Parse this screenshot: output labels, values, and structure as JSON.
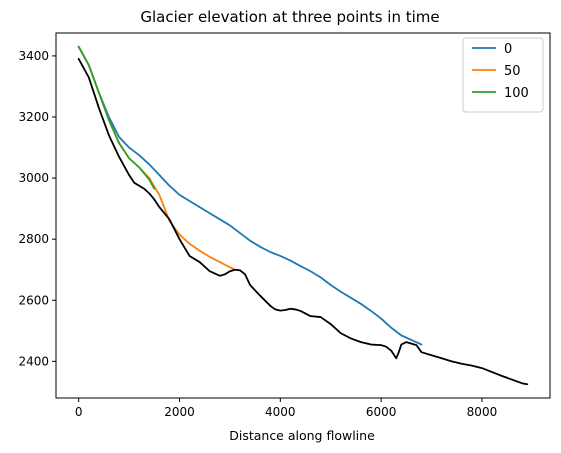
{
  "chart_data": {
    "type": "line",
    "title": "Glacier elevation at three points in time",
    "xlabel": "Distance along flowline",
    "ylabel": "",
    "xlim": [
      -450,
      9350
    ],
    "ylim": [
      2280,
      3475
    ],
    "xticks": [
      0,
      2000,
      4000,
      6000,
      8000
    ],
    "yticks": [
      2400,
      2600,
      2800,
      3000,
      3200,
      3400
    ],
    "grid": false,
    "legend": "top-right",
    "series": [
      {
        "name": "0",
        "color": "#1f77b4",
        "x": [
          0,
          200,
          400,
          600,
          800,
          1000,
          1200,
          1400,
          1600,
          1800,
          2000,
          2200,
          2400,
          2600,
          2800,
          3000,
          3200,
          3400,
          3600,
          3800,
          4000,
          4200,
          4400,
          4600,
          4800,
          5000,
          5200,
          5400,
          5600,
          5800,
          6000,
          6200,
          6400,
          6600,
          6800
        ],
        "y": [
          3430,
          3370,
          3280,
          3200,
          3135,
          3100,
          3075,
          3045,
          3010,
          2975,
          2945,
          2925,
          2905,
          2885,
          2865,
          2845,
          2820,
          2795,
          2775,
          2758,
          2745,
          2730,
          2712,
          2695,
          2675,
          2650,
          2628,
          2608,
          2588,
          2565,
          2540,
          2510,
          2485,
          2470,
          2455
        ]
      },
      {
        "name": "50",
        "color": "#ff7f0e",
        "x": [
          0,
          200,
          400,
          600,
          800,
          1000,
          1200,
          1400,
          1600,
          1800,
          2000,
          2200,
          2400,
          2600,
          2800,
          3000,
          3100
        ],
        "y": [
          3430,
          3370,
          3280,
          3190,
          3115,
          3065,
          3035,
          3000,
          2945,
          2860,
          2815,
          2785,
          2762,
          2742,
          2725,
          2708,
          2700
        ]
      },
      {
        "name": "100",
        "color": "#2ca02c",
        "x": [
          0,
          200,
          400,
          600,
          800,
          1000,
          1200,
          1400,
          1500
        ],
        "y": [
          3430,
          3370,
          3280,
          3190,
          3115,
          3065,
          3035,
          2995,
          2965
        ]
      },
      {
        "name": "",
        "color": "#000000",
        "x": [
          0,
          200,
          400,
          600,
          800,
          1000,
          1100,
          1200,
          1300,
          1400,
          1500,
          1600,
          1800,
          2000,
          2200,
          2400,
          2600,
          2800,
          2900,
          3000,
          3100,
          3200,
          3300,
          3400,
          3600,
          3800,
          3900,
          4000,
          4100,
          4200,
          4300,
          4400,
          4600,
          4800,
          5000,
          5200,
          5400,
          5600,
          5800,
          6000,
          6100,
          6200,
          6300,
          6350,
          6400,
          6500,
          6600,
          6700,
          6800,
          7000,
          7200,
          7400,
          7600,
          7800,
          8000,
          8200,
          8400,
          8600,
          8800,
          8900
        ],
        "y": [
          3390,
          3330,
          3230,
          3140,
          3070,
          3010,
          2985,
          2975,
          2965,
          2950,
          2930,
          2905,
          2865,
          2800,
          2745,
          2725,
          2695,
          2680,
          2685,
          2695,
          2700,
          2698,
          2685,
          2650,
          2615,
          2582,
          2570,
          2566,
          2568,
          2572,
          2570,
          2565,
          2548,
          2545,
          2522,
          2492,
          2475,
          2463,
          2455,
          2453,
          2448,
          2435,
          2410,
          2430,
          2455,
          2463,
          2458,
          2453,
          2430,
          2420,
          2410,
          2400,
          2392,
          2386,
          2378,
          2365,
          2352,
          2340,
          2328,
          2325
        ]
      }
    ]
  }
}
